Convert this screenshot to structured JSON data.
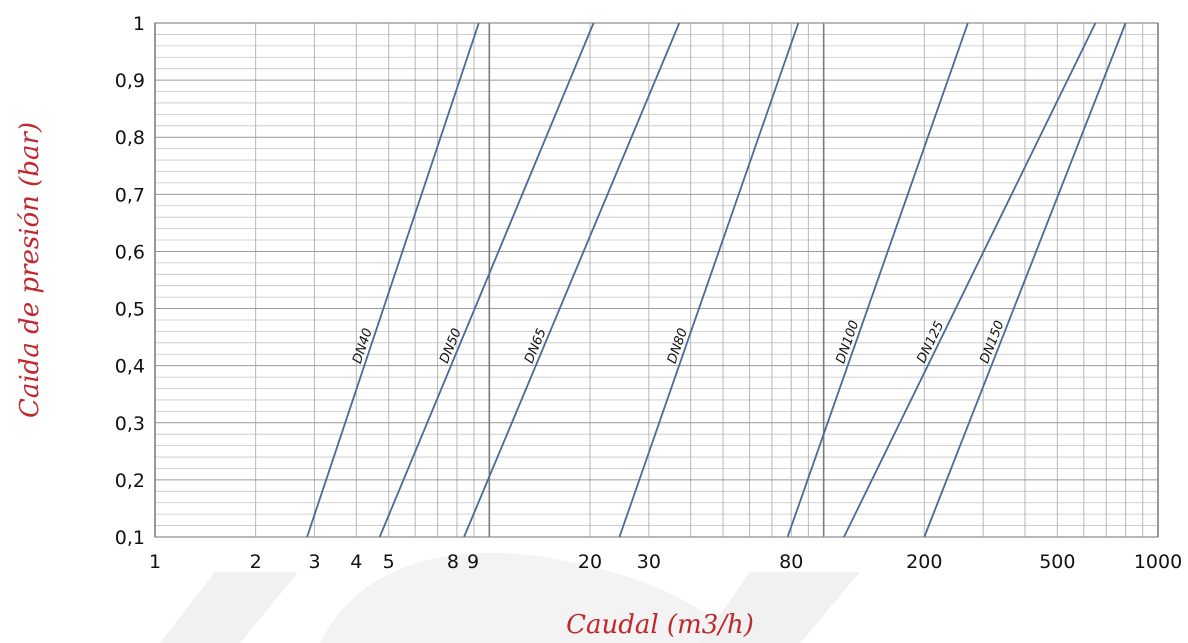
{
  "chart_data": {
    "type": "line",
    "x_scale": "log",
    "xlim": [
      1,
      1000
    ],
    "ylim": [
      0.1,
      1
    ],
    "xlabel": "Caudal (m3/h)",
    "ylabel": "Caida de presión (bar)",
    "x_ticks": [
      {
        "value": 1,
        "label": "1"
      },
      {
        "value": 2,
        "label": "2"
      },
      {
        "value": 3,
        "label": "3"
      },
      {
        "value": 4,
        "label": "4"
      },
      {
        "value": 5,
        "label": "5"
      },
      {
        "value": 8,
        "label": "8"
      },
      {
        "value": 9,
        "label": "9"
      },
      {
        "value": 20,
        "label": "20"
      },
      {
        "value": 30,
        "label": "30"
      },
      {
        "value": 80,
        "label": "80"
      },
      {
        "value": 200,
        "label": "200"
      },
      {
        "value": 500,
        "label": "500"
      },
      {
        "value": 1000,
        "label": "1000"
      }
    ],
    "y_ticks": [
      {
        "value": 0.1,
        "label": "0,1"
      },
      {
        "value": 0.2,
        "label": "0,2"
      },
      {
        "value": 0.3,
        "label": "0,3"
      },
      {
        "value": 0.4,
        "label": "0,4"
      },
      {
        "value": 0.5,
        "label": "0,5"
      },
      {
        "value": 0.6,
        "label": "0,6"
      },
      {
        "value": 0.7,
        "label": "0,7"
      },
      {
        "value": 0.8,
        "label": "0,8"
      },
      {
        "value": 0.9,
        "label": "0,9"
      },
      {
        "value": 1,
        "label": "1"
      }
    ],
    "grid": true,
    "line_color": "#4a6a9a",
    "axis_title_color": "#c0282d",
    "series": [
      {
        "name": "DN40",
        "x": [
          2.85,
          9.3
        ],
        "y": [
          0.1,
          1
        ],
        "label_at": 0.4
      },
      {
        "name": "DN50",
        "x": [
          4.7,
          20.5
        ],
        "y": [
          0.1,
          1
        ],
        "label_at": 0.4
      },
      {
        "name": "DN65",
        "x": [
          8.4,
          37
        ],
        "y": [
          0.1,
          1
        ],
        "label_at": 0.4
      },
      {
        "name": "DN80",
        "x": [
          24.5,
          84
        ],
        "y": [
          0.1,
          1
        ],
        "label_at": 0.4
      },
      {
        "name": "DN100",
        "x": [
          78,
          270
        ],
        "y": [
          0.1,
          1
        ],
        "label_at": 0.4
      },
      {
        "name": "DN125",
        "x": [
          115,
          650
        ],
        "y": [
          0.1,
          1
        ],
        "label_at": 0.4
      },
      {
        "name": "DN150",
        "x": [
          200,
          800
        ],
        "y": [
          0.1,
          1
        ],
        "label_at": 0.4
      }
    ]
  }
}
